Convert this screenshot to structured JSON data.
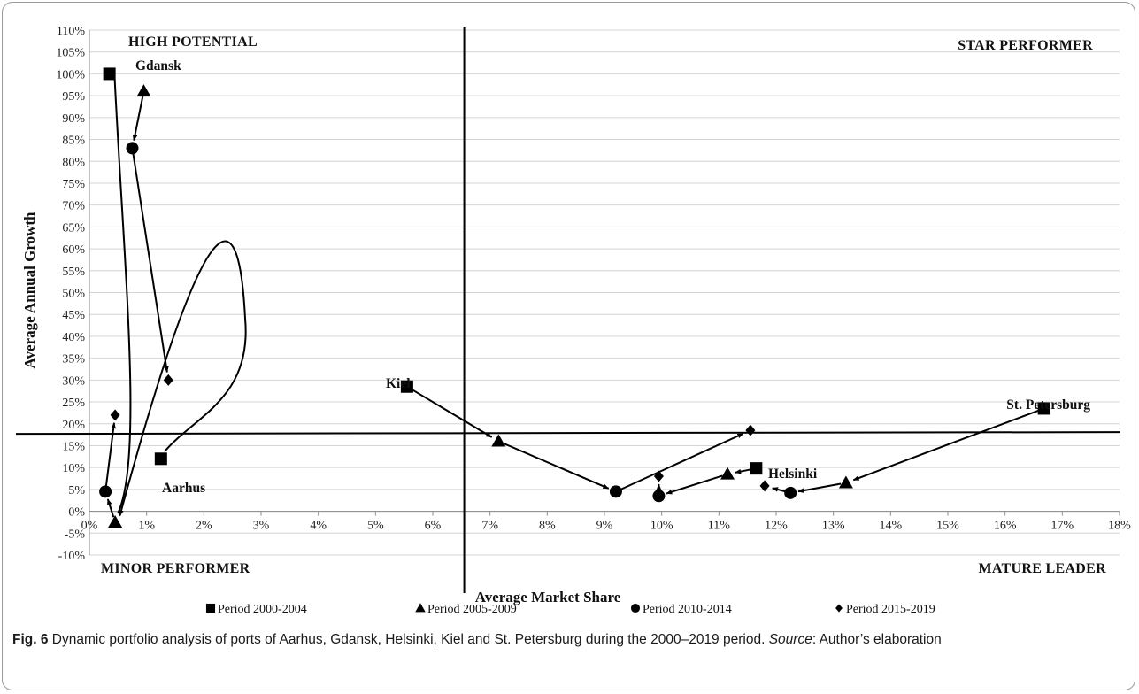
{
  "chart_data": {
    "type": "scatter",
    "title": "",
    "xlabel": "Average Market Share",
    "ylabel": "Average Annual Growth",
    "xlim": [
      0,
      18
    ],
    "ylim": [
      -10,
      110
    ],
    "x_unit": "%",
    "y_unit": "%",
    "x_ticks": [
      "0%",
      "1%",
      "2%",
      "3%",
      "4%",
      "5%",
      "6%",
      "7%",
      "8%",
      "9%",
      "10%",
      "11%",
      "12%",
      "13%",
      "14%",
      "15%",
      "16%",
      "17%",
      "18%"
    ],
    "y_ticks": [
      "-10%",
      "-5%",
      "0%",
      "5%",
      "10%",
      "15%",
      "20%",
      "25%",
      "30%",
      "35%",
      "40%",
      "45%",
      "50%",
      "55%",
      "60%",
      "65%",
      "70%",
      "75%",
      "80%",
      "85%",
      "90%",
      "95%",
      "100%",
      "105%",
      "110%"
    ],
    "grid": "horizontal",
    "legend_position": "bottom",
    "divider_x": 6.55,
    "divider_y": 17.7,
    "quadrants": {
      "top_left": "HIGH POTENTIAL",
      "top_right": "STAR PERFORMER",
      "bottom_left": "MINOR PERFORMER",
      "bottom_right": "MATURE LEADER"
    },
    "series": [
      {
        "name": "Period 2000-2004",
        "marker": "square"
      },
      {
        "name": "Period 2005-2009",
        "marker": "triangle"
      },
      {
        "name": "Period 2010-2014",
        "marker": "circle"
      },
      {
        "name": "Period 2015-2019",
        "marker": "diamond"
      }
    ],
    "ports": [
      {
        "name": "Gdansk",
        "points": [
          {
            "period": "Period 2000-2004",
            "x": 0.35,
            "y": 100
          },
          {
            "period": "Period 2005-2009",
            "x": 0.95,
            "y": 96
          },
          {
            "period": "Period 2010-2014",
            "x": 0.75,
            "y": 83
          },
          {
            "period": "Period 2015-2019",
            "x": 1.38,
            "y": 30
          }
        ]
      },
      {
        "name": "Aarhus",
        "points": [
          {
            "period": "Period 2000-2004",
            "x": 1.25,
            "y": 12
          },
          {
            "period": "Period 2005-2009",
            "x": 0.45,
            "y": -2.5
          },
          {
            "period": "Period 2010-2014",
            "x": 0.28,
            "y": 4.5
          },
          {
            "period": "Period 2015-2019",
            "x": 0.45,
            "y": 22
          }
        ]
      },
      {
        "name": "Kiel",
        "points": [
          {
            "period": "Period 2000-2004",
            "x": 5.55,
            "y": 28.5
          },
          {
            "period": "Period 2005-2009",
            "x": 7.15,
            "y": 16
          },
          {
            "period": "Period 2010-2014",
            "x": 9.2,
            "y": 4.5
          },
          {
            "period": "Period 2015-2019",
            "x": 11.55,
            "y": 18.5
          }
        ]
      },
      {
        "name": "Helsinki",
        "points": [
          {
            "period": "Period 2000-2004",
            "x": 11.65,
            "y": 9.8
          },
          {
            "period": "Period 2005-2009",
            "x": 11.15,
            "y": 8.5
          },
          {
            "period": "Period 2010-2014",
            "x": 9.95,
            "y": 3.5
          },
          {
            "period": "Period 2015-2019",
            "x": 9.95,
            "y": 8
          }
        ]
      },
      {
        "name": "St. Petersburg",
        "points": [
          {
            "period": "Period 2000-2004",
            "x": 16.68,
            "y": 23.5
          },
          {
            "period": "Period 2005-2009",
            "x": 13.22,
            "y": 6.5
          },
          {
            "period": "Period 2010-2014",
            "x": 12.25,
            "y": 4.2
          },
          {
            "period": "Period 2015-2019",
            "x": 11.8,
            "y": 5.8
          }
        ]
      }
    ]
  },
  "caption": {
    "label": "Fig. 6",
    "text": " Dynamic portfolio analysis of ports of Aarhus, Gdansk, Helsinki, Kiel and St. Petersburg during the 2000–2019 period. ",
    "source_label": "Source",
    "source_text": ": Author’s elaboration"
  }
}
